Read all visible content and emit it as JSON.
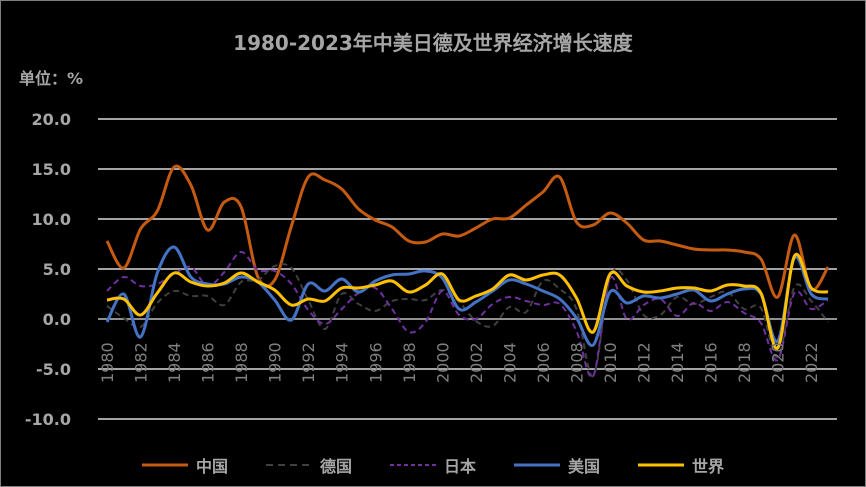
{
  "chart_data": {
    "type": "line",
    "title": "1980-2023年中美日德及世界经济增长速度",
    "ylabel": "单位：%",
    "xlabel": "",
    "ylim": [
      -10,
      20
    ],
    "yticks": [
      "20.0",
      "15.0",
      "10.0",
      "5.0",
      "0.0",
      "-5.0",
      "-10.0"
    ],
    "ytick_values": [
      20,
      15,
      10,
      5,
      0,
      -5,
      -10
    ],
    "x": [
      1980,
      1981,
      1982,
      1983,
      1984,
      1985,
      1986,
      1987,
      1988,
      1989,
      1990,
      1991,
      1992,
      1993,
      1994,
      1995,
      1996,
      1997,
      1998,
      1999,
      2000,
      2001,
      2002,
      2003,
      2004,
      2005,
      2006,
      2007,
      2008,
      2009,
      2010,
      2011,
      2012,
      2013,
      2014,
      2015,
      2016,
      2017,
      2018,
      2019,
      2020,
      2021,
      2022,
      2023
    ],
    "xtick_labels": [
      "1980",
      "1982",
      "1984",
      "1986",
      "1988",
      "1990",
      "1992",
      "1994",
      "1996",
      "1998",
      "2000",
      "2002",
      "2004",
      "2006",
      "2008",
      "2010",
      "2012",
      "2014",
      "2016",
      "2018",
      "2020",
      "2022"
    ],
    "grid": true,
    "legend_position": "bottom",
    "series": [
      {
        "name": "中国",
        "color": "#c55a11",
        "dash": "solid",
        "values": [
          7.8,
          5.1,
          9.0,
          10.8,
          15.2,
          13.4,
          8.9,
          11.7,
          11.2,
          4.2,
          3.9,
          9.3,
          14.2,
          13.9,
          13.0,
          11.0,
          9.9,
          9.2,
          7.8,
          7.7,
          8.5,
          8.3,
          9.1,
          10.0,
          10.1,
          11.4,
          12.7,
          14.2,
          9.7,
          9.4,
          10.6,
          9.6,
          7.9,
          7.8,
          7.4,
          7.0,
          6.9,
          6.9,
          6.7,
          6.0,
          2.2,
          8.4,
          3.0,
          5.2
        ]
      },
      {
        "name": "德国",
        "color": "#404040",
        "dash": "dashed",
        "values": [
          1.3,
          0.1,
          -0.8,
          1.6,
          2.8,
          2.3,
          2.3,
          1.4,
          3.7,
          3.9,
          5.3,
          5.1,
          1.9,
          -1.0,
          2.5,
          1.5,
          0.8,
          1.8,
          2.0,
          1.9,
          2.9,
          1.7,
          -0.2,
          -0.7,
          1.2,
          0.7,
          3.8,
          3.0,
          1.0,
          -5.7,
          4.2,
          3.9,
          0.4,
          0.4,
          2.2,
          1.5,
          2.2,
          2.7,
          1.0,
          1.1,
          -3.8,
          3.2,
          1.8,
          -0.3
        ]
      },
      {
        "name": "日本",
        "color": "#7030a0",
        "dash": "dashed",
        "values": [
          2.8,
          4.2,
          3.3,
          3.5,
          4.5,
          5.2,
          3.3,
          4.7,
          6.7,
          4.9,
          4.8,
          3.5,
          0.9,
          -0.5,
          1.0,
          2.6,
          3.1,
          1.0,
          -1.3,
          -0.3,
          2.8,
          0.4,
          0.0,
          1.5,
          2.2,
          1.8,
          1.4,
          1.5,
          -1.2,
          -5.7,
          4.1,
          0.0,
          1.4,
          2.0,
          0.3,
          1.6,
          0.8,
          1.7,
          0.6,
          -0.4,
          -4.1,
          2.6,
          1.0,
          1.9
        ]
      },
      {
        "name": "美国",
        "color": "#4472c4",
        "dash": "solid",
        "values": [
          -0.3,
          2.5,
          -1.8,
          4.6,
          7.2,
          4.2,
          3.5,
          3.5,
          4.2,
          3.7,
          1.9,
          -0.1,
          3.5,
          2.8,
          4.0,
          2.7,
          3.8,
          4.4,
          4.5,
          4.8,
          4.1,
          1.0,
          1.7,
          2.8,
          3.9,
          3.5,
          2.8,
          2.0,
          0.1,
          -2.6,
          2.7,
          1.6,
          2.3,
          2.1,
          2.5,
          2.9,
          1.8,
          2.5,
          3.0,
          2.5,
          -2.2,
          6.1,
          2.5,
          2.0
        ]
      },
      {
        "name": "世界",
        "color": "#ffc000",
        "dash": "solid",
        "values": [
          1.9,
          2.0,
          0.4,
          2.6,
          4.6,
          3.7,
          3.3,
          3.6,
          4.6,
          3.7,
          2.9,
          1.4,
          2.0,
          1.8,
          3.1,
          3.1,
          3.4,
          3.8,
          2.7,
          3.4,
          4.5,
          1.9,
          2.3,
          3.0,
          4.4,
          3.9,
          4.4,
          4.4,
          2.1,
          -1.3,
          4.5,
          3.3,
          2.7,
          2.8,
          3.1,
          3.1,
          2.8,
          3.4,
          3.3,
          2.6,
          -2.9,
          6.3,
          3.1,
          2.7
        ]
      }
    ]
  }
}
